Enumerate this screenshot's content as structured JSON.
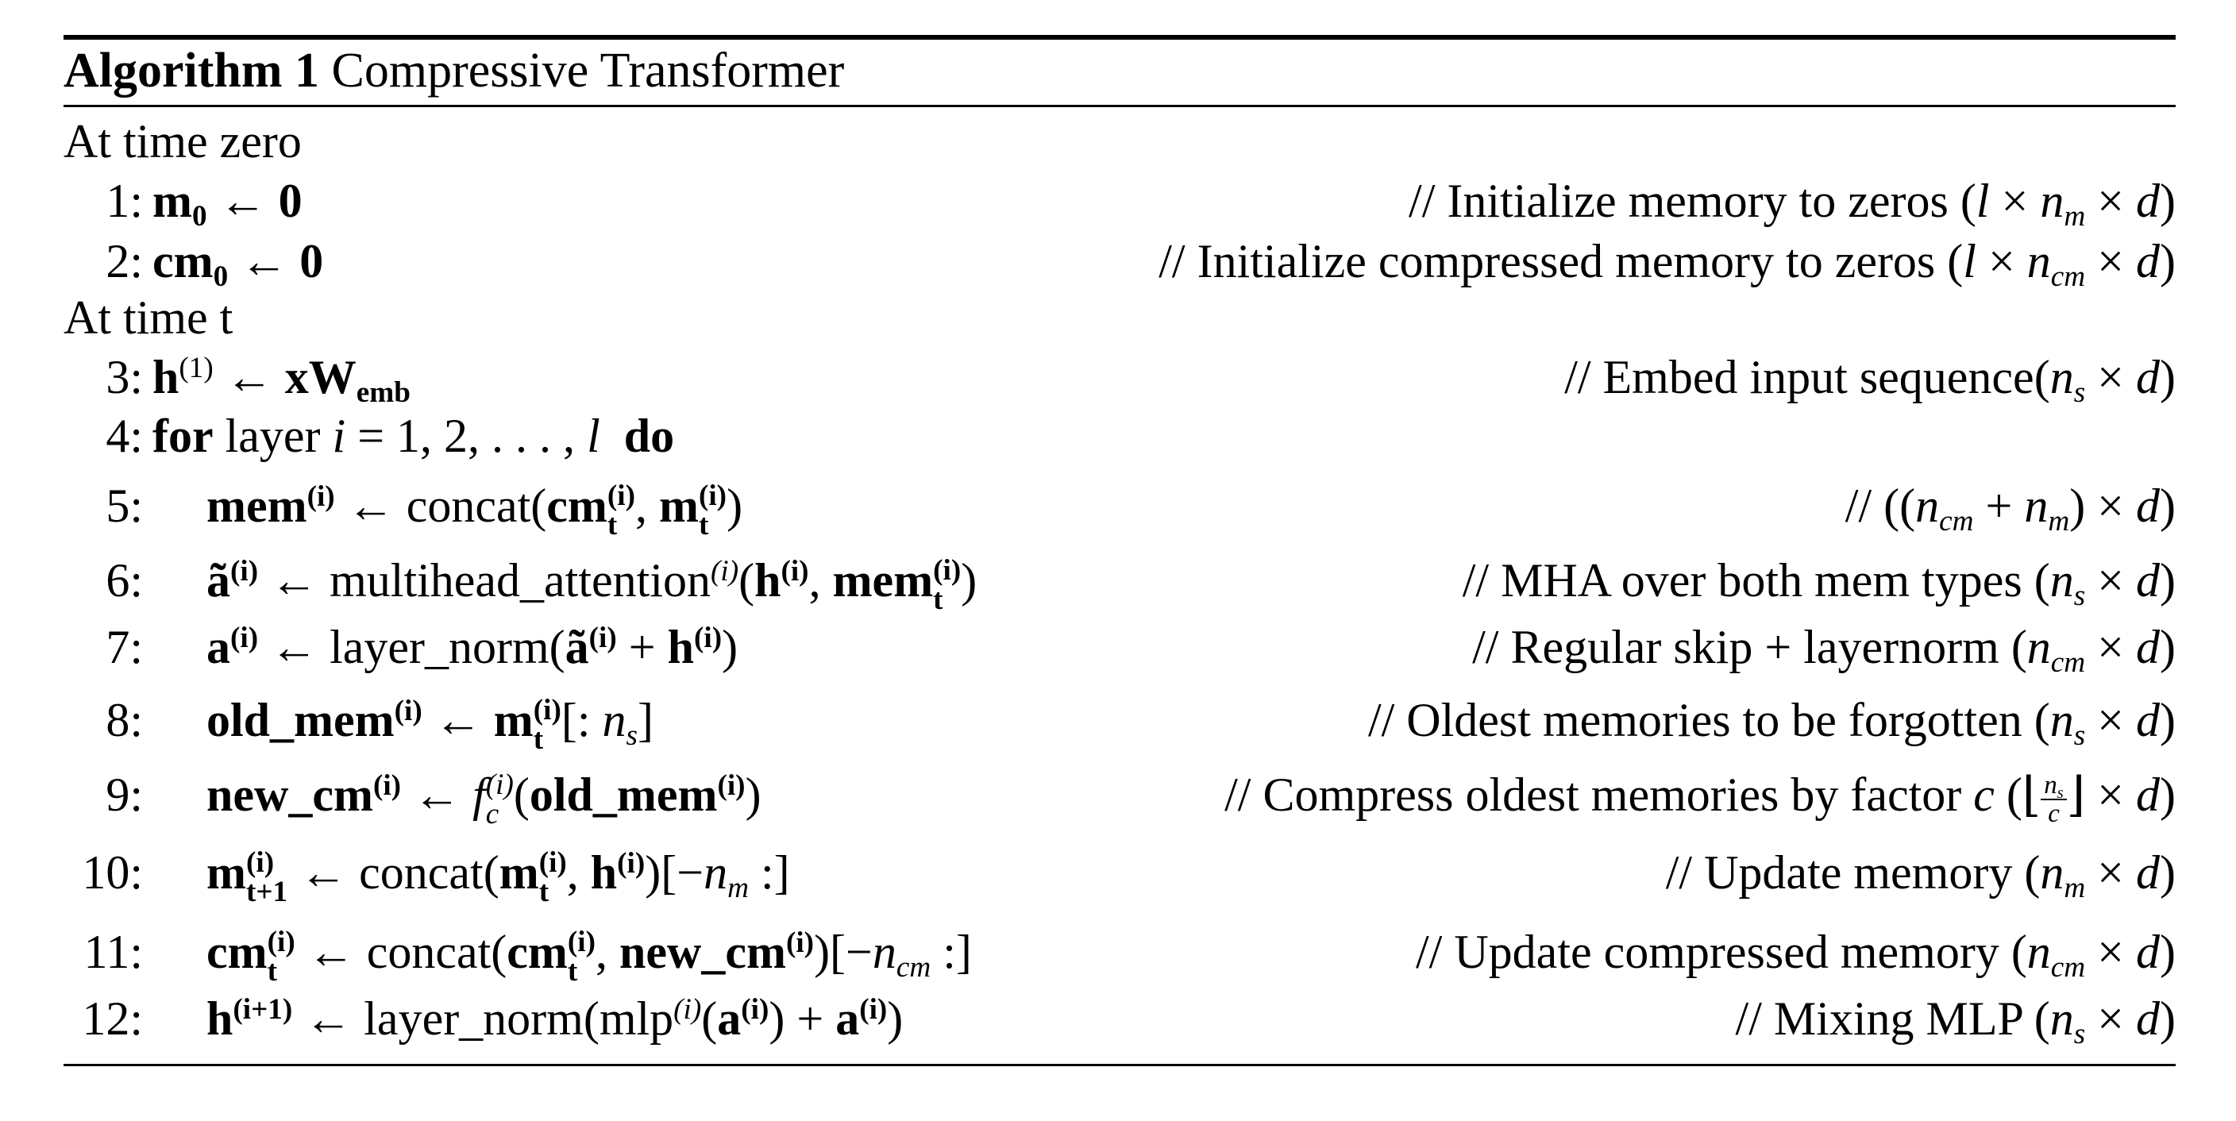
{
  "algorithm": {
    "caption_label": "Algorithm 1",
    "caption_title": "Compressive Transformer",
    "section_zero": "At time zero",
    "section_t": "At time t",
    "lines": [
      {
        "num": "1:",
        "comment": "// Initialize memory to zeros"
      },
      {
        "num": "2:",
        "comment": "// Initialize compressed memory to zeros"
      },
      {
        "num": "3:",
        "comment": "// Embed input sequence"
      },
      {
        "num": "4:",
        "comment": ""
      },
      {
        "num": "5:",
        "comment": "//"
      },
      {
        "num": "6:",
        "comment": "// MHA over both mem types"
      },
      {
        "num": "7:",
        "comment": "// Regular skip + layernorm"
      },
      {
        "num": "8:",
        "comment": "// Oldest memories to be forgotten"
      },
      {
        "num": "9:",
        "comment": "// Compress oldest memories by factor"
      },
      {
        "num": "10:",
        "comment": "// Update memory"
      },
      {
        "num": "11:",
        "comment": "// Update compressed memory"
      },
      {
        "num": "12:",
        "comment": "// Mixing MLP"
      }
    ],
    "keywords": {
      "for": "for",
      "layer": "layer",
      "do": "do"
    },
    "functions": {
      "concat": "concat",
      "multihead_attention": "multihead_attention",
      "layer_norm": "layer_norm",
      "mlp": "mlp"
    }
  }
}
